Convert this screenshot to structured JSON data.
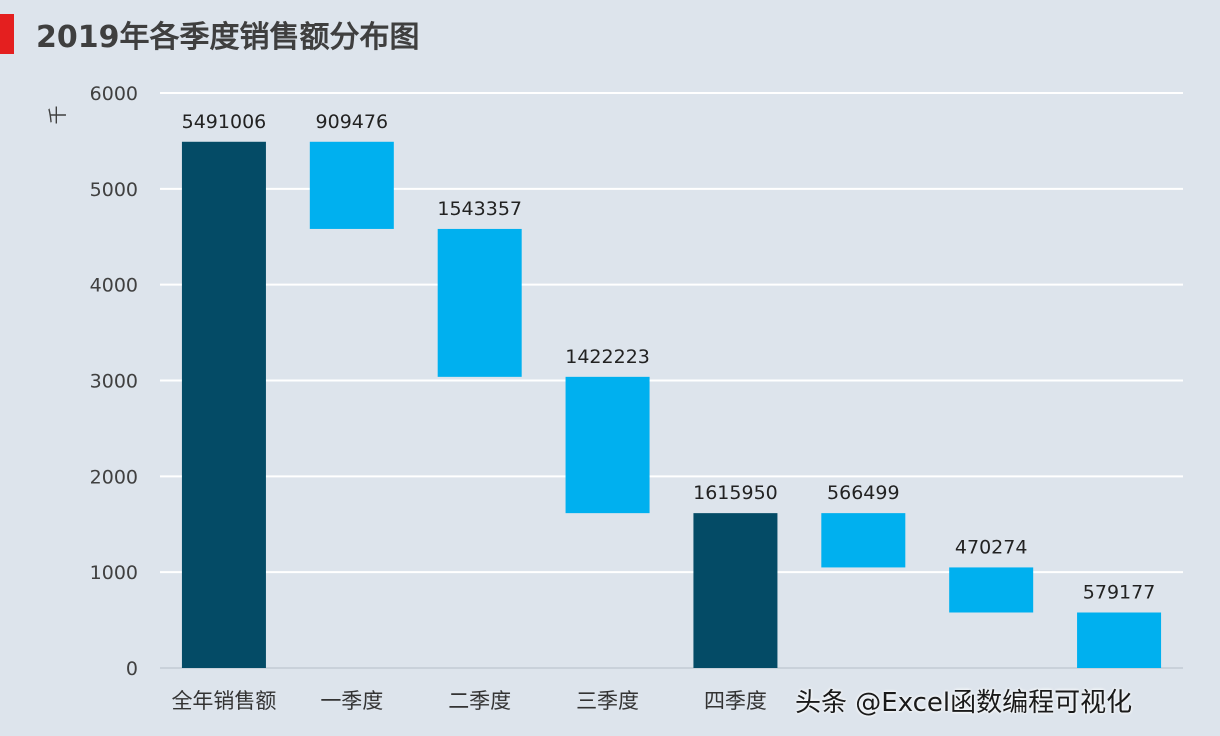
{
  "title": "2019年各季度销售额分布图",
  "watermark": "头条 @Excel函数编程可视化",
  "colors": {
    "accent": "#e41f1f",
    "total": "#044b66",
    "step": "#00b0ef",
    "grid": "#ffffff",
    "background": "#dde4ec"
  },
  "chart_data": {
    "type": "bar",
    "subtype": "waterfall",
    "ylabel": "千",
    "ylim": [
      0,
      6000
    ],
    "yticks": [
      0,
      1000,
      2000,
      3000,
      4000,
      5000,
      6000
    ],
    "grid": true,
    "bars": [
      {
        "category": "全年销售额",
        "start": 0,
        "end": 5491.006,
        "label": "5491006",
        "kind": "total"
      },
      {
        "category": "一季度",
        "start": 5491.006,
        "end": 4581.53,
        "label": "909476",
        "kind": "decrease"
      },
      {
        "category": "二季度",
        "start": 4581.53,
        "end": 3038.173,
        "label": "1543357",
        "kind": "decrease"
      },
      {
        "category": "三季度",
        "start": 3038.173,
        "end": 1615.95,
        "label": "1422223",
        "kind": "decrease"
      },
      {
        "category": "四季度",
        "start": 0,
        "end": 1615.95,
        "label": "1615950",
        "kind": "total"
      },
      {
        "category": "",
        "start": 1615.95,
        "end": 1049.451,
        "label": "566499",
        "kind": "decrease"
      },
      {
        "category": "",
        "start": 1049.451,
        "end": 579.177,
        "label": "470274",
        "kind": "decrease"
      },
      {
        "category": "",
        "start": 579.177,
        "end": 0,
        "label": "579177",
        "kind": "decrease"
      }
    ]
  }
}
